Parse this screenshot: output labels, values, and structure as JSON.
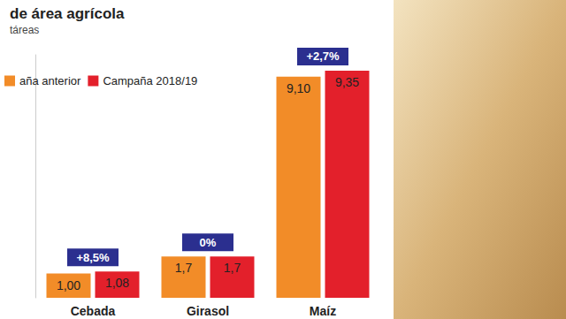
{
  "chart_data": {
    "type": "bar",
    "title": "de área agrícola",
    "subtitle": "táreas",
    "categories": [
      "Cebada",
      "Girasol",
      "Maíz"
    ],
    "series": [
      {
        "name": "aña anterior",
        "color": "#f28c28",
        "values": [
          1.0,
          1.7,
          9.1
        ],
        "value_labels": [
          "1,00",
          "1,7",
          "9,10"
        ]
      },
      {
        "name": "Campaña 2018/19",
        "color": "#e3202b",
        "values": [
          1.08,
          1.7,
          9.35
        ],
        "value_labels": [
          "1,08",
          "1,7",
          "9,35"
        ]
      }
    ],
    "annotations": [
      "+8,5%",
      "0%",
      "+2,7%"
    ],
    "ylim": [
      0,
      10
    ],
    "yticks": [
      0,
      10
    ],
    "grid": false,
    "data_labels": true,
    "tick_labels": "x",
    "legend": "upper left"
  }
}
